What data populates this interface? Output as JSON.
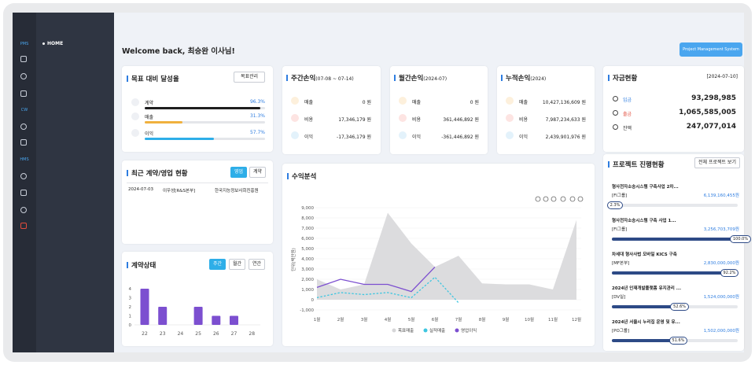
{
  "sidebar": {
    "home": "HOME",
    "sections": [
      "PMS",
      "CW",
      "HMS"
    ]
  },
  "header": {
    "welcome": "Welcome back, 최승완 이사님!",
    "system_button": "Project Management System"
  },
  "goal": {
    "title": "목표 대비 달성율",
    "button": "목표관리",
    "rows": [
      {
        "label": "계약",
        "value": 96.3,
        "value_label": "96.3%",
        "color": "#1e1e1e"
      },
      {
        "label": "매출",
        "value": 31.3,
        "value_label": "31.3%",
        "color": "#f0b13e"
      },
      {
        "label": "이익",
        "value": 57.7,
        "value_label": "57.7%",
        "color": "#2eaee8"
      }
    ]
  },
  "pnl": [
    {
      "title": "주간손익",
      "period": "(07-08 ~ 07-14)",
      "rows": [
        {
          "label": "매출",
          "amount": "0 원"
        },
        {
          "label": "비용",
          "amount": "17,346,179 원"
        },
        {
          "label": "이익",
          "amount": "-17,346,179 원"
        }
      ]
    },
    {
      "title": "월간손익",
      "period": "(2024-07)",
      "rows": [
        {
          "label": "매출",
          "amount": "0 원"
        },
        {
          "label": "비용",
          "amount": "361,446,892 원"
        },
        {
          "label": "이익",
          "amount": "-361,446,892 원"
        }
      ]
    },
    {
      "title": "누적손익",
      "period": "(2024)",
      "rows": [
        {
          "label": "매출",
          "amount": "10,427,136,609 원"
        },
        {
          "label": "비용",
          "amount": "7,987,234,633 원"
        },
        {
          "label": "이익",
          "amount": "2,439,901,976 원"
        }
      ]
    }
  ],
  "funds": {
    "title": "자금현황",
    "date": "[2024-07-10]",
    "rows": [
      {
        "label": "입금",
        "amount": "93,298,985"
      },
      {
        "label": "출금",
        "amount": "1,065,585,005"
      },
      {
        "label": "잔액",
        "amount": "247,077,014"
      }
    ]
  },
  "recent": {
    "title": "최근 계약/영업 현황",
    "buttons": [
      "영업",
      "계약"
    ],
    "rows": [
      [
        "2024-07-03",
        "이우성[R&S본부]",
        "한국지능정보사회진흥원"
      ]
    ]
  },
  "projects": {
    "title": "프로젝트 진행현황",
    "button": "전체 프로젝트 보기",
    "items": [
      {
        "name": "형사전자소송시스템 구축사업 2차...",
        "group": "[FI그룹]",
        "amount": "6,139,160,455원",
        "progress": 2.3,
        "progress_label": "2.3%"
      },
      {
        "name": "형사전자소송시스템 구축 사업 1...",
        "group": "[FI그룹]",
        "amount": "3,256,703,709원",
        "progress": 100.0,
        "progress_label": "100.0%"
      },
      {
        "name": "차세대 형사사법 모바일 KICS 구축",
        "group": "[MF본부]",
        "amount": "2,830,000,000원",
        "progress": 92.2,
        "progress_label": "92.2%"
      },
      {
        "name": "2024년 인재개발플랫폼 유지관리 ...",
        "group": "[DV실]",
        "amount": "1,524,000,000원",
        "progress": 52.6,
        "progress_label": "52.6%"
      },
      {
        "name": "2024년 서울시 누리집 운영 및 유...",
        "group": "[PO그룹]",
        "amount": "1,502,000,000원",
        "progress": 51.6,
        "progress_label": "51.6%"
      }
    ]
  },
  "chart_data": [
    {
      "type": "bar",
      "title": "계약상태",
      "buttons": [
        "주간",
        "월간",
        "연간"
      ],
      "categories": [
        "22",
        "23",
        "24",
        "25",
        "26",
        "27",
        "28"
      ],
      "values": [
        4,
        2,
        0,
        2,
        1,
        1,
        0
      ],
      "color": "#7c4fd0",
      "ylim": [
        0,
        4
      ],
      "yticks": [
        0,
        1,
        2,
        3,
        4
      ]
    },
    {
      "type": "line",
      "title": "수익분석",
      "y_label": "단위(백만원)",
      "categories": [
        "1월",
        "2월",
        "3월",
        "4월",
        "5월",
        "6월",
        "7월",
        "8월",
        "9월",
        "10월",
        "11월",
        "12월"
      ],
      "series": [
        {
          "name": "목표매출",
          "color": "#d6d6d8",
          "style": "area",
          "values": [
            2000,
            1000,
            1500,
            8500,
            5500,
            3200,
            4300,
            1600,
            1500,
            1500,
            1000,
            7800
          ]
        },
        {
          "name": "실적매출",
          "color": "#3ec6e0",
          "style": "dashed",
          "values": [
            200,
            700,
            500,
            700,
            200,
            2200,
            -300,
            null,
            null,
            null,
            null,
            null
          ]
        },
        {
          "name": "영업이익",
          "color": "#7c4fd0",
          "style": "solid",
          "values": [
            1200,
            2000,
            1500,
            1500,
            800,
            3200,
            null,
            null,
            null,
            null,
            null,
            null
          ]
        }
      ],
      "ylim": [
        -1000,
        9000
      ],
      "yticks": [
        {
          "value": -1000,
          "label": "-1,000"
        },
        0,
        {
          "value": 1000,
          "label": "1,000"
        },
        {
          "value": 2000,
          "label": "2,000"
        },
        {
          "value": 3000,
          "label": "3,000"
        },
        {
          "value": 4000,
          "label": "4,000"
        },
        {
          "value": 5000,
          "label": "5,000"
        },
        {
          "value": 6000,
          "label": "6,000"
        },
        {
          "value": 7000,
          "label": "7,000"
        },
        {
          "value": 8000,
          "label": "8,000"
        },
        {
          "value": 9000,
          "label": "9,000"
        }
      ]
    }
  ]
}
